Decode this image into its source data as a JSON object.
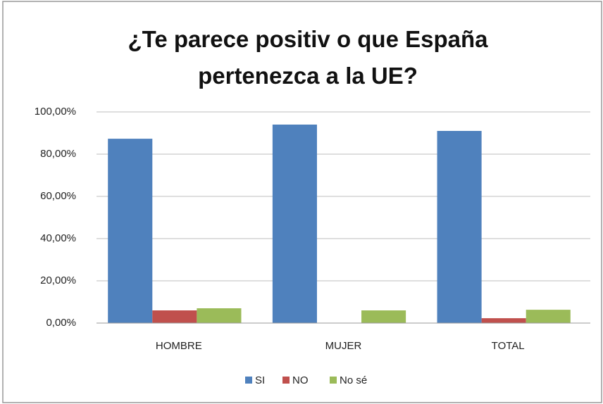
{
  "chart_data": {
    "type": "bar",
    "title": "¿Te parece positiv o que España pertenezca a la UE?",
    "categories": [
      "HOMBRE",
      "MUJER",
      "TOTAL"
    ],
    "series": [
      {
        "name": "SI",
        "color": "#4f81bd",
        "values": [
          87.3,
          94,
          91
        ]
      },
      {
        "name": "NO",
        "color": "#c0504d",
        "values": [
          6,
          0,
          2.3
        ]
      },
      {
        "name": "No sé",
        "color": "#9bbb59",
        "values": [
          7,
          6,
          6.3
        ]
      }
    ],
    "ylim": [
      0,
      100
    ],
    "yticks": [
      {
        "value": 0,
        "label": "0,00%"
      },
      {
        "value": 20,
        "label": "20,00%"
      },
      {
        "value": 40,
        "label": "40,00%"
      },
      {
        "value": 60,
        "label": "60,00%"
      },
      {
        "value": 80,
        "label": "80,00%"
      },
      {
        "value": 100,
        "label": "100,00%"
      }
    ],
    "grid": true,
    "legend": "bottom"
  }
}
